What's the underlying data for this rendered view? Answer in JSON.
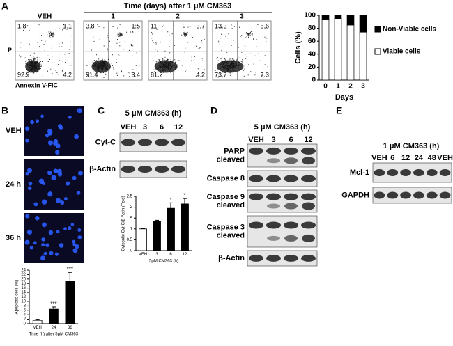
{
  "panel_labels": [
    "A",
    "B",
    "C",
    "D",
    "E"
  ],
  "panel_a": {
    "header": "Time (days) after 1 μM CM363",
    "y_axis": "P",
    "x_axis": "Annexin V-FIC",
    "plots": [
      {
        "label": "VEH",
        "quadrants": [
          1.8,
          1.1,
          92.9,
          4.2
        ]
      },
      {
        "label": "1",
        "quadrants": [
          3.8,
          1.5,
          91.4,
          3.4
        ]
      },
      {
        "label": "2",
        "quadrants": [
          11,
          3.7,
          81.2,
          4.2
        ]
      },
      {
        "label": "3",
        "quadrants": [
          13.3,
          5.6,
          73.7,
          7.3
        ]
      }
    ]
  },
  "panel_b": {
    "images": [
      "VEH",
      "24 h",
      "36 h"
    ]
  },
  "panel_c": {
    "title": "5 μM CM363 (h)",
    "lanes": [
      "VEH",
      "3",
      "6",
      "12"
    ],
    "blots": [
      [
        "Cyt-C"
      ],
      [
        "β-Actin"
      ]
    ]
  },
  "panel_d": {
    "title": "5 μM CM363 (h)",
    "lanes": [
      "VEH",
      "3",
      "6",
      "12"
    ],
    "blots": [
      [
        "PARP",
        "cleaved"
      ],
      [
        "Caspase 8"
      ],
      [
        "Caspase 9",
        "cleaved"
      ],
      [
        "Caspase 3",
        "cleaved"
      ],
      [
        "β-Actin"
      ]
    ]
  },
  "panel_e": {
    "title": "1 μM CM363 (h)",
    "lanes": [
      "VEH",
      "6",
      "12",
      "24",
      "48",
      "VEH"
    ],
    "blots": [
      [
        "Mcl-1"
      ],
      [
        "GAPDH"
      ]
    ]
  },
  "chart_data": [
    {
      "type": "bar",
      "stacked": true,
      "y_label": "Cells (%)",
      "x_label": "Days",
      "categories": [
        "0",
        "1",
        "2",
        "3"
      ],
      "series": [
        {
          "name": "Viable cells",
          "color": "#ffffff",
          "values": [
            93,
            95,
            85,
            74
          ]
        },
        {
          "name": "Non-Viable cells",
          "color": "#000000",
          "values": [
            7,
            5,
            15,
            26
          ]
        }
      ],
      "ylim": [
        0,
        100
      ],
      "yticks": [
        0,
        20,
        40,
        60,
        80,
        100
      ]
    },
    {
      "type": "bar",
      "y_label": "Apoptotic cells (%)",
      "x_label": "Time (h) after 5μM CM363",
      "categories": [
        "VEH",
        "24",
        "36"
      ],
      "values": [
        1.5,
        6.5,
        19
      ],
      "errors": [
        0.5,
        1,
        4
      ],
      "colors": [
        "#ffffff",
        "#000000",
        "#000000"
      ],
      "annotations": [
        {
          "x": "24",
          "text": "***"
        },
        {
          "x": "36",
          "text": "***"
        }
      ],
      "ylim": [
        0,
        24
      ],
      "yticks": [
        0,
        2,
        4,
        6,
        8,
        10,
        12,
        14,
        16,
        18,
        20,
        22,
        24
      ]
    },
    {
      "type": "bar",
      "y_label": "Cytosolic Cyt-C/β-Actin (Fold)",
      "x_label": "5μM CM363 (h)",
      "categories": [
        "VEH",
        "3",
        "6",
        "12"
      ],
      "values": [
        1,
        1.35,
        1.95,
        2.15
      ],
      "errors": [
        0.02,
        0.05,
        0.25,
        0.25
      ],
      "colors": [
        "#ffffff",
        "#000000",
        "#000000",
        "#000000"
      ],
      "annotations": [
        {
          "x": "6",
          "text": "*"
        },
        {
          "x": "12",
          "text": "*"
        }
      ],
      "ylim": [
        0,
        2.5
      ],
      "yticks": [
        0,
        0.5,
        1,
        1.5,
        2,
        2.5
      ]
    }
  ]
}
